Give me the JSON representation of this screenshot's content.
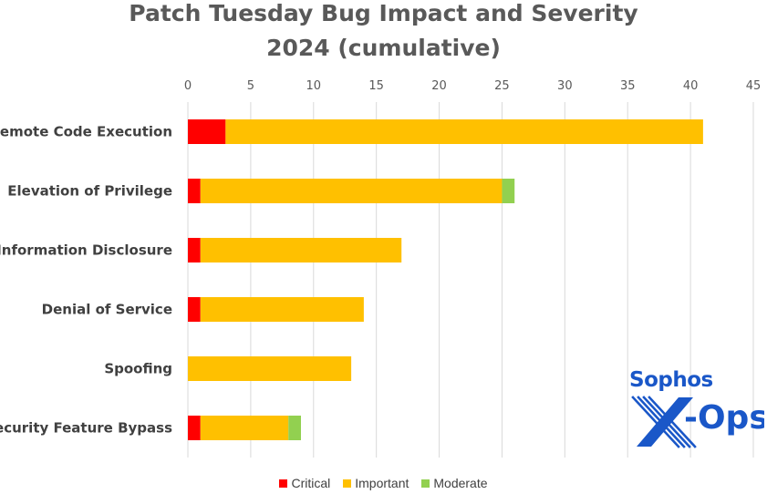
{
  "chart_data": {
    "type": "bar",
    "orientation": "horizontal",
    "stacked": true,
    "title_lines": [
      "Patch Tuesday Bug Impact and Severity",
      "2024 (cumulative)"
    ],
    "categories": [
      "Remote Code Execution",
      "Elevation of Privilege",
      "Information Disclosure",
      "Denial of Service",
      "Spoofing",
      "Security Feature Bypass"
    ],
    "series": [
      {
        "name": "Critical",
        "color": "#ff0000",
        "values": [
          3,
          1,
          1,
          1,
          0,
          1
        ]
      },
      {
        "name": "Important",
        "color": "#ffc000",
        "values": [
          38,
          24,
          16,
          13,
          13,
          7
        ]
      },
      {
        "name": "Moderate",
        "color": "#92d050",
        "values": [
          0,
          1,
          0,
          0,
          0,
          1
        ]
      }
    ],
    "xlim": [
      0,
      45
    ],
    "xticks": [
      0,
      5,
      10,
      15,
      20,
      25,
      30,
      35,
      40,
      45
    ],
    "x_axis_position": "top",
    "grid": true,
    "legend_position": "bottom"
  },
  "logo": {
    "top_text": "Sophos",
    "main_text": "X-Ops",
    "color": "#1a57c8"
  }
}
